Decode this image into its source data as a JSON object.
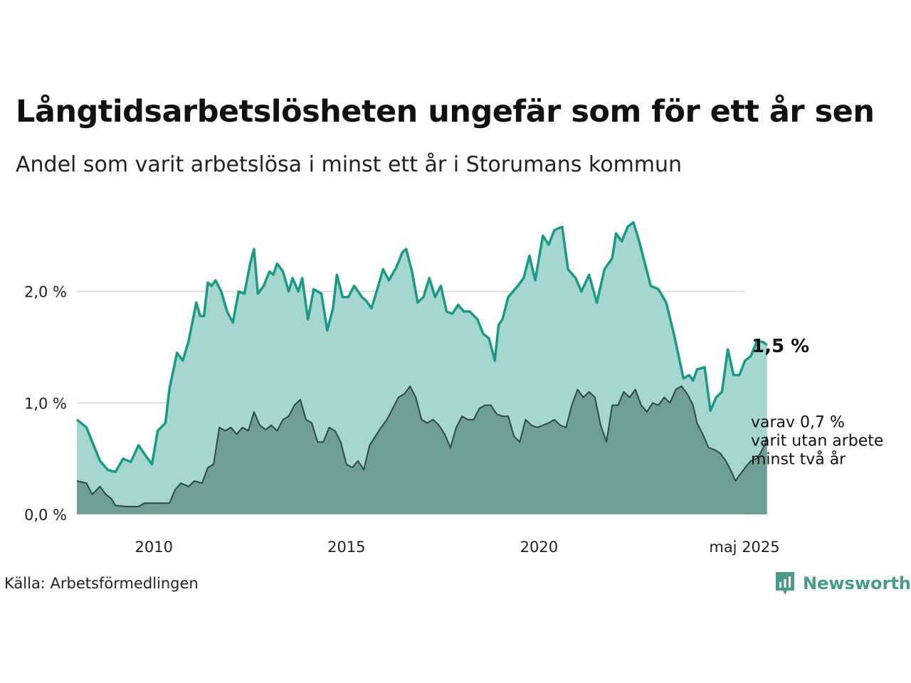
{
  "title": "Långtidsarbetslösheten ungefär som för ett år sen",
  "subtitle": "Andel som varit arbetslösa i minst ett år i Storumans kommun",
  "source": "Källa: Arbetsförmedlingen",
  "logo_text": "Newsworthy",
  "colors": {
    "main_line": "#1a9a86",
    "main_fill": "#a5d7d0",
    "sub_line": "#2e4a44",
    "sub_fill": "#6f9e96",
    "grid": "#dddddd",
    "logo": "#4a9a8c"
  },
  "chart_data": {
    "type": "area",
    "x_start": "2008-01",
    "x_end": "2025-05",
    "ylim": [
      0,
      2.7
    ],
    "grid": true,
    "y_ticks": [
      {
        "value": 0.0,
        "label": "0,0 %"
      },
      {
        "value": 1.0,
        "label": "1,0 %"
      },
      {
        "value": 2.0,
        "label": "2,0 %"
      }
    ],
    "x_ticks": [
      {
        "date": "2010-01",
        "label": "2010"
      },
      {
        "date": "2015-01",
        "label": "2015"
      },
      {
        "date": "2020-01",
        "label": "2020"
      },
      {
        "date": "2025-05",
        "label": "maj 2025"
      }
    ],
    "annotations": {
      "main_label": "1,5 %",
      "sub_label_lines": [
        "varav 0,7 %",
        "varit utan arbete",
        "minst två år"
      ]
    },
    "series": [
      {
        "values": [
          [
            2008.0,
            0.85
          ],
          [
            2008.25,
            0.78
          ],
          [
            2008.4,
            0.65
          ],
          [
            2008.6,
            0.48
          ],
          [
            2008.8,
            0.4
          ],
          [
            2009.0,
            0.38
          ],
          [
            2009.2,
            0.5
          ],
          [
            2009.4,
            0.47
          ],
          [
            2009.6,
            0.62
          ],
          [
            2009.8,
            0.52
          ],
          [
            2009.95,
            0.45
          ],
          [
            2010.1,
            0.75
          ],
          [
            2010.3,
            0.82
          ],
          [
            2010.4,
            1.12
          ],
          [
            2010.6,
            1.45
          ],
          [
            2010.75,
            1.38
          ],
          [
            2010.9,
            1.55
          ],
          [
            2011.1,
            1.9
          ],
          [
            2011.2,
            1.78
          ],
          [
            2011.3,
            1.78
          ],
          [
            2011.4,
            2.08
          ],
          [
            2011.5,
            2.05
          ],
          [
            2011.6,
            2.1
          ],
          [
            2011.75,
            2.0
          ],
          [
            2011.9,
            1.82
          ],
          [
            2012.05,
            1.72
          ],
          [
            2012.2,
            2.0
          ],
          [
            2012.35,
            1.98
          ],
          [
            2012.5,
            2.25
          ],
          [
            2012.6,
            2.38
          ],
          [
            2012.7,
            1.98
          ],
          [
            2012.85,
            2.05
          ],
          [
            2013.0,
            2.18
          ],
          [
            2013.1,
            2.15
          ],
          [
            2013.2,
            2.25
          ],
          [
            2013.35,
            2.18
          ],
          [
            2013.5,
            2.0
          ],
          [
            2013.6,
            2.12
          ],
          [
            2013.75,
            2.0
          ],
          [
            2013.85,
            2.12
          ],
          [
            2014.0,
            1.75
          ],
          [
            2014.15,
            2.02
          ],
          [
            2014.35,
            1.98
          ],
          [
            2014.5,
            1.65
          ],
          [
            2014.65,
            1.85
          ],
          [
            2014.75,
            2.15
          ],
          [
            2014.9,
            1.95
          ],
          [
            2015.05,
            1.95
          ],
          [
            2015.2,
            2.05
          ],
          [
            2015.4,
            1.95
          ],
          [
            2015.5,
            1.92
          ],
          [
            2015.65,
            1.85
          ],
          [
            2015.8,
            2.02
          ],
          [
            2015.95,
            2.2
          ],
          [
            2016.1,
            2.1
          ],
          [
            2016.3,
            2.22
          ],
          [
            2016.45,
            2.35
          ],
          [
            2016.55,
            2.38
          ],
          [
            2016.7,
            2.18
          ],
          [
            2016.85,
            1.9
          ],
          [
            2017.0,
            1.95
          ],
          [
            2017.15,
            2.12
          ],
          [
            2017.3,
            1.95
          ],
          [
            2017.45,
            2.05
          ],
          [
            2017.6,
            1.82
          ],
          [
            2017.75,
            1.8
          ],
          [
            2017.9,
            1.88
          ],
          [
            2018.05,
            1.82
          ],
          [
            2018.2,
            1.82
          ],
          [
            2018.4,
            1.75
          ],
          [
            2018.55,
            1.62
          ],
          [
            2018.7,
            1.58
          ],
          [
            2018.85,
            1.38
          ],
          [
            2018.95,
            1.7
          ],
          [
            2019.05,
            1.75
          ],
          [
            2019.2,
            1.95
          ],
          [
            2019.45,
            2.05
          ],
          [
            2019.6,
            2.12
          ],
          [
            2019.75,
            2.32
          ],
          [
            2019.9,
            2.1
          ],
          [
            2020.0,
            2.3
          ],
          [
            2020.1,
            2.5
          ],
          [
            2020.25,
            2.42
          ],
          [
            2020.4,
            2.55
          ],
          [
            2020.6,
            2.58
          ],
          [
            2020.75,
            2.2
          ],
          [
            2020.95,
            2.12
          ],
          [
            2021.1,
            2.0
          ],
          [
            2021.3,
            2.15
          ],
          [
            2021.5,
            1.9
          ],
          [
            2021.7,
            2.2
          ],
          [
            2021.9,
            2.3
          ],
          [
            2022.0,
            2.52
          ],
          [
            2022.15,
            2.45
          ],
          [
            2022.3,
            2.58
          ],
          [
            2022.45,
            2.62
          ],
          [
            2022.6,
            2.45
          ],
          [
            2022.75,
            2.25
          ],
          [
            2022.9,
            2.05
          ],
          [
            2023.1,
            2.02
          ],
          [
            2023.3,
            1.9
          ],
          [
            2023.5,
            1.62
          ],
          [
            2023.75,
            1.22
          ],
          [
            2023.9,
            1.25
          ],
          [
            2024.0,
            1.2
          ],
          [
            2024.1,
            1.3
          ],
          [
            2024.3,
            1.32
          ],
          [
            2024.45,
            0.93
          ],
          [
            2024.6,
            1.05
          ],
          [
            2024.75,
            1.1
          ],
          [
            2024.9,
            1.48
          ],
          [
            2025.05,
            1.25
          ],
          [
            2025.2,
            1.25
          ],
          [
            2025.35,
            1.38
          ],
          [
            2025.5,
            1.42
          ],
          [
            2025.65,
            1.55
          ],
          [
            2025.8,
            1.55
          ],
          [
            2025.92,
            1.52
          ]
        ]
      },
      {
        "values": [
          [
            2008.0,
            0.3
          ],
          [
            2008.25,
            0.28
          ],
          [
            2008.4,
            0.18
          ],
          [
            2008.6,
            0.25
          ],
          [
            2008.75,
            0.18
          ],
          [
            2008.9,
            0.14
          ],
          [
            2009.0,
            0.08
          ],
          [
            2009.3,
            0.07
          ],
          [
            2009.6,
            0.07
          ],
          [
            2009.75,
            0.1
          ],
          [
            2010.0,
            0.1
          ],
          [
            2010.4,
            0.1
          ],
          [
            2010.55,
            0.22
          ],
          [
            2010.7,
            0.28
          ],
          [
            2010.9,
            0.25
          ],
          [
            2011.05,
            0.3
          ],
          [
            2011.25,
            0.28
          ],
          [
            2011.4,
            0.42
          ],
          [
            2011.55,
            0.45
          ],
          [
            2011.7,
            0.78
          ],
          [
            2011.85,
            0.75
          ],
          [
            2012.0,
            0.78
          ],
          [
            2012.15,
            0.72
          ],
          [
            2012.3,
            0.78
          ],
          [
            2012.45,
            0.75
          ],
          [
            2012.6,
            0.92
          ],
          [
            2012.75,
            0.8
          ],
          [
            2012.9,
            0.76
          ],
          [
            2013.05,
            0.8
          ],
          [
            2013.2,
            0.75
          ],
          [
            2013.35,
            0.85
          ],
          [
            2013.5,
            0.88
          ],
          [
            2013.65,
            0.98
          ],
          [
            2013.8,
            1.03
          ],
          [
            2013.95,
            0.85
          ],
          [
            2014.1,
            0.82
          ],
          [
            2014.25,
            0.65
          ],
          [
            2014.4,
            0.65
          ],
          [
            2014.55,
            0.78
          ],
          [
            2014.7,
            0.75
          ],
          [
            2014.85,
            0.65
          ],
          [
            2015.0,
            0.45
          ],
          [
            2015.15,
            0.42
          ],
          [
            2015.3,
            0.48
          ],
          [
            2015.45,
            0.4
          ],
          [
            2015.6,
            0.62
          ],
          [
            2015.75,
            0.7
          ],
          [
            2015.9,
            0.78
          ],
          [
            2016.05,
            0.85
          ],
          [
            2016.2,
            0.95
          ],
          [
            2016.35,
            1.05
          ],
          [
            2016.5,
            1.08
          ],
          [
            2016.65,
            1.15
          ],
          [
            2016.8,
            1.05
          ],
          [
            2016.95,
            0.85
          ],
          [
            2017.1,
            0.82
          ],
          [
            2017.25,
            0.85
          ],
          [
            2017.4,
            0.8
          ],
          [
            2017.55,
            0.72
          ],
          [
            2017.7,
            0.6
          ],
          [
            2017.85,
            0.78
          ],
          [
            2018.0,
            0.88
          ],
          [
            2018.15,
            0.85
          ],
          [
            2018.3,
            0.85
          ],
          [
            2018.45,
            0.95
          ],
          [
            2018.6,
            0.98
          ],
          [
            2018.75,
            0.98
          ],
          [
            2018.9,
            0.9
          ],
          [
            2019.05,
            0.88
          ],
          [
            2019.2,
            0.88
          ],
          [
            2019.35,
            0.7
          ],
          [
            2019.5,
            0.65
          ],
          [
            2019.65,
            0.85
          ],
          [
            2019.8,
            0.8
          ],
          [
            2019.95,
            0.78
          ],
          [
            2020.1,
            0.8
          ],
          [
            2020.25,
            0.82
          ],
          [
            2020.4,
            0.85
          ],
          [
            2020.55,
            0.8
          ],
          [
            2020.7,
            0.78
          ],
          [
            2020.85,
            0.98
          ],
          [
            2021.0,
            1.12
          ],
          [
            2021.15,
            1.05
          ],
          [
            2021.3,
            1.1
          ],
          [
            2021.45,
            1.05
          ],
          [
            2021.6,
            0.8
          ],
          [
            2021.75,
            0.65
          ],
          [
            2021.9,
            0.98
          ],
          [
            2022.05,
            0.98
          ],
          [
            2022.2,
            1.1
          ],
          [
            2022.35,
            1.05
          ],
          [
            2022.5,
            1.12
          ],
          [
            2022.65,
            0.98
          ],
          [
            2022.8,
            0.92
          ],
          [
            2022.95,
            1.0
          ],
          [
            2023.1,
            0.98
          ],
          [
            2023.25,
            1.05
          ],
          [
            2023.4,
            1.0
          ],
          [
            2023.55,
            1.12
          ],
          [
            2023.7,
            1.15
          ],
          [
            2023.85,
            1.08
          ],
          [
            2024.0,
            0.98
          ],
          [
            2024.1,
            0.82
          ],
          [
            2024.25,
            0.72
          ],
          [
            2024.4,
            0.6
          ],
          [
            2024.55,
            0.58
          ],
          [
            2024.7,
            0.55
          ],
          [
            2024.85,
            0.48
          ],
          [
            2025.0,
            0.38
          ],
          [
            2025.1,
            0.3
          ],
          [
            2025.2,
            0.35
          ],
          [
            2025.35,
            0.42
          ],
          [
            2025.5,
            0.48
          ],
          [
            2025.65,
            0.5
          ],
          [
            2025.75,
            0.55
          ],
          [
            2025.85,
            0.62
          ],
          [
            2025.92,
            0.7
          ]
        ]
      }
    ]
  }
}
